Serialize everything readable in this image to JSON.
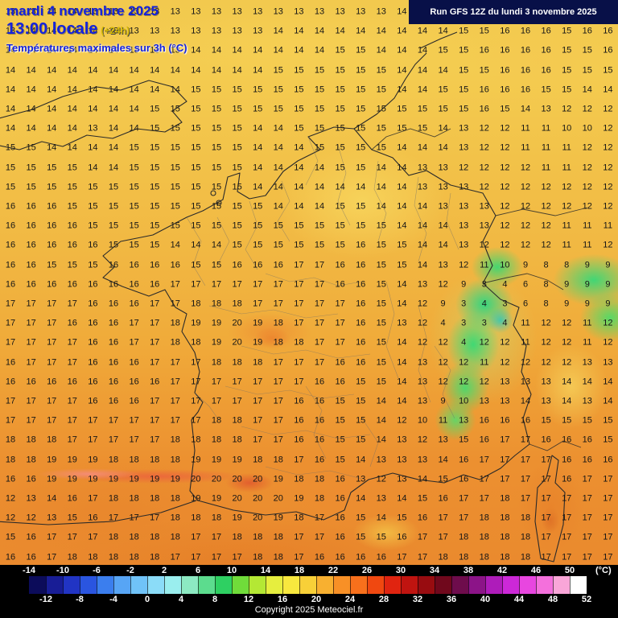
{
  "header": {
    "date_line": "mardi 4 novembre 2025",
    "time_line": "13:00 locale",
    "offset": "(+24h)",
    "subtitle": "Températures maximales sur 3h (°C)",
    "run_info": "Run GFS 12Z du lundi 3 novembre 2025"
  },
  "map": {
    "description": "Grid of forecast maximum temperatures (°C) over France and surroundings",
    "grid": {
      "rows": [
        "13 13 14 14 13 13 13 13 13 13 13 13 13 13 13 13 13 13 13 14 14 14 13 13 13 14 15 16 16 16",
        "13 14 14 14 14 13 13 13 13 13 13 13 13 14 14 14 14 14 14 14 14 14 15 15 16 16 16 15 16 16",
        "14 14 14 14 14 14 13 13 13 14 14 14 14 14 14 14 15 15 14 14 14 15 15 16 16 16 16 15 15 16",
        "14 14 14 14 14 14 14 14 14 14 14 14 14 15 15 15 15 15 15 14 14 14 15 15 16 16 16 15 15 15",
        "14 14 14 14 14 14 14 14 14 15 15 15 15 15 15 15 15 15 15 14 14 15 15 16 16 16 15 15 14 14",
        "14 14 14 14 14 14 14 15 15 15 15 15 15 15 15 15 15 15 15 15 15 15 15 16 15 14 13 12 12 12",
        "14 14 14 14 13 14 14 15 15 15 15 15 14 14 15 15 15 15 15 15 15 14 13 12 12 11 11 10 10 12",
        "15 15 14 14 14 14 15 15 15 15 15 15 14 14 14 15 15 15 15 14 14 14 13 12 12 11 11 11 12 12",
        "15 15 15 15 14 14 15 15 15 15 15 15 14 14 14 14 15 15 14 14 13 13 12 12 12 12 11 11 12 12",
        "15 15 15 15 15 15 15 15 15 15 15 15 14 14 14 14 14 14 14 14 13 13 13 12 12 12 12 12 12 12",
        "16 16 16 15 15 15 15 15 15 15 15 15 15 14 14 14 15 15 14 14 14 13 13 13 12 12 12 12 12 12",
        "16 16 16 16 15 15 15 15 15 15 15 15 15 15 15 15 15 15 15 14 14 14 13 13 12 12 12 11 11 11",
        "16 16 16 16 16 15 15 15 14 14 14 15 15 15 15 15 15 16 15 15 14 14 13 12 12 12 12 11 11 12",
        "16 16 15 15 15 16 16 16 16 15 15 16 16 16 17 17 16 16 15 15 14 13 12 11 10 9 8 8 9 9",
        "16 16 16 16 16 16 16 16 17 17 17 17 17 17 17 17 16 16 15 14 13 12 9 3 4 6 8 9 9 9",
        "17 17 17 17 16 16 16 17 17 18 18 18 17 17 17 17 17 16 15 14 12 9 3 4 3 6 8 9 9 9",
        "17 17 17 16 16 16 17 17 18 19 19 20 19 18 17 17 17 16 15 13 12 4 3 3 4 11 12 12 11 12",
        "17 17 17 17 16 16 17 17 18 18 19 20 19 18 18 17 17 16 15 14 12 12 4 12 12 11 12 12 11 12",
        "16 17 17 17 16 16 16 17 17 17 18 18 18 17 17 17 16 16 15 14 13 12 12 11 12 12 12 12 13 13",
        "16 16 16 16 16 16 16 16 17 17 17 17 17 17 17 16 16 15 15 14 13 12 12 12 13 13 13 14 14 14",
        "17 17 17 17 16 16 16 17 17 17 17 17 17 17 16 16 15 15 14 14 13 9 10 13 13 14 13 14 13 14",
        "17 17 17 17 17 17 17 17 17 17 18 18 17 17 16 16 15 15 14 12 10 11 13 16 16 16 15 15 15 15",
        "18 18 18 17 17 17 17 17 18 18 18 18 17 17 16 16 15 15 14 13 12 13 15 16 17 17 16 16 16 15",
        "18 18 19 19 19 18 18 18 18 19 19 19 18 18 17 16 15 14 13 13 13 14 16 17 17 17 17 16 16 16",
        "16 16 19 19 19 19 19 19 19 20 20 20 20 19 18 18 16 13 12 13 14 15 16 17 17 17 17 16 17 17",
        "12 13 14 16 17 18 18 18 18 19 19 20 20 20 19 18 16 14 13 14 15 16 17 17 18 17 17 17 17 17",
        "12 12 13 15 16 17 17 17 18 18 18 19 20 19 18 17 16 15 14 15 16 17 17 18 18 18 17 17 17 17",
        "15 16 17 17 17 18 18 18 18 17 17 18 18 18 17 17 16 15 15 16 17 17 18 18 18 18 17 17 17 17",
        "16 16 17 18 18 18 18 18 17 17 17 17 18 18 17 16 16 16 16 17 17 18 18 18 18 18 17 17 17 17"
      ]
    }
  },
  "scale": {
    "top_labels": [
      "-14",
      "-10",
      "-6",
      "-2",
      "2",
      "6",
      "10",
      "14",
      "18",
      "22",
      "26",
      "30",
      "34",
      "38",
      "42",
      "46",
      "50"
    ],
    "bottom_labels": [
      "-12",
      "-8",
      "-4",
      "0",
      "4",
      "8",
      "12",
      "16",
      "20",
      "24",
      "28",
      "32",
      "36",
      "40",
      "44",
      "48",
      "52"
    ],
    "unit": "(°C)",
    "colors": [
      "#0c0c5a",
      "#181d96",
      "#2134c4",
      "#2a55e0",
      "#3b7eee",
      "#57a5f5",
      "#70c3f8",
      "#8bdcf8",
      "#9aeeee",
      "#8ce9c2",
      "#5cdc8e",
      "#2ed062",
      "#70dc3a",
      "#b4e834",
      "#e6ee3e",
      "#f8e83e",
      "#f8d038",
      "#f8b030",
      "#f89026",
      "#f8701c",
      "#f04810",
      "#e02410",
      "#c01410",
      "#980c10",
      "#70081c",
      "#6e0c4c",
      "#8c1488",
      "#ae1cba",
      "#cc28d8",
      "#e846e0",
      "#f470dc",
      "#f9a6d8",
      "#ffffff"
    ]
  },
  "footer": {
    "copyright": "Copyright 2025 Meteociel.fr"
  }
}
